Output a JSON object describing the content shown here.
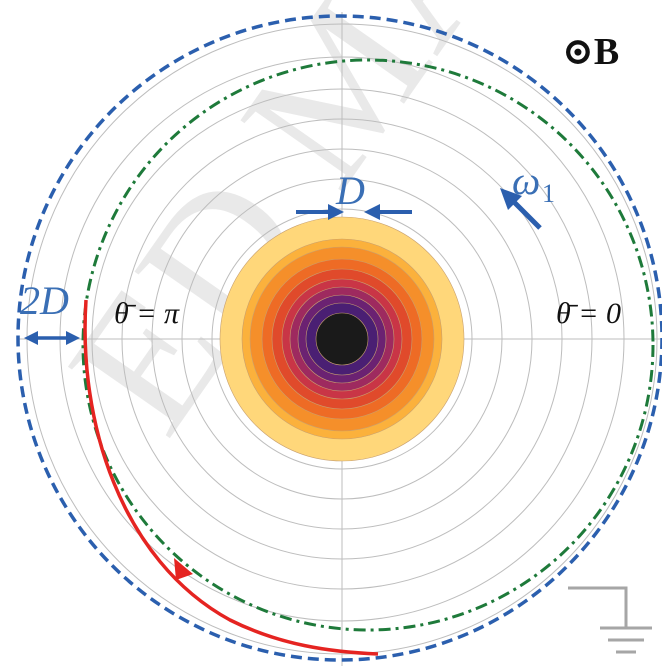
{
  "diagram": {
    "field_label": "⊙B",
    "width_label": "D",
    "offset_label": "2D",
    "angle_pi_label": "θ̄ = π",
    "angle_zero_label": "θ̄ = 0",
    "rotation_label": "ω",
    "rotation_subscript": "1",
    "watermark_text": "ED MAP",
    "colors": {
      "blue": "#2b5fae",
      "green": "#1e7a3a",
      "red": "#e52421",
      "grid": "#bdbdbd",
      "core": "#1a1a1a"
    },
    "core_ring_colors": [
      "#ffd77a",
      "#fbb13c",
      "#f58f2a",
      "#ee6b25",
      "#e04a2b",
      "#c93546",
      "#9e2a5f",
      "#6b2272",
      "#4a1f73",
      "#1a1a1a"
    ]
  }
}
